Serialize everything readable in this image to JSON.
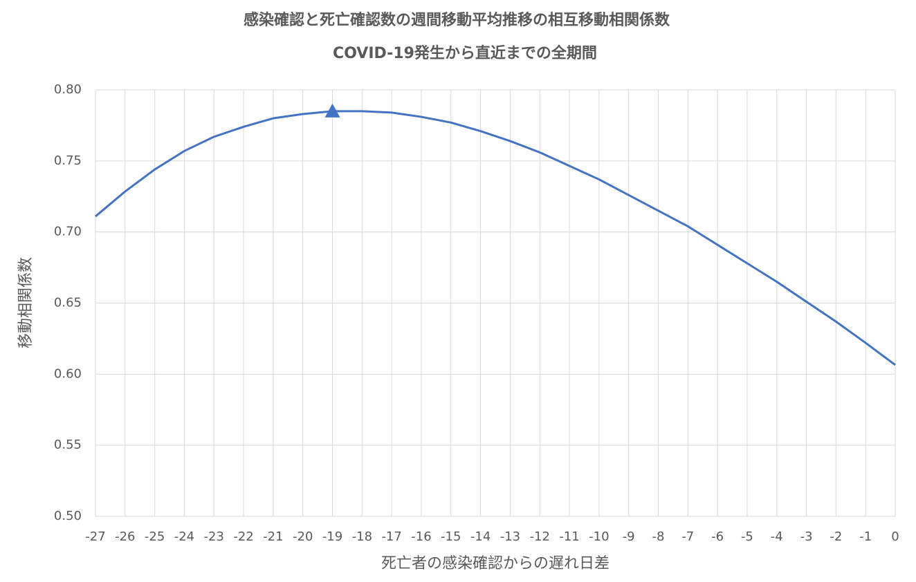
{
  "chart_data": {
    "type": "line",
    "title": "感染確認と死亡確認数の週間移動平均推移の相互移動相関係数",
    "subtitle": "COVID-19発生から直近までの全期間",
    "x_label": "死亡者の感染確認からの遅れ日差",
    "y_label": "移動相関係数",
    "x": [
      -27,
      -26,
      -25,
      -24,
      -23,
      -22,
      -21,
      -20,
      -19,
      -18,
      -17,
      -16,
      -15,
      -14,
      -13,
      -12,
      -11,
      -10,
      -9,
      -8,
      -7,
      -6,
      -5,
      -4,
      -3,
      -2,
      -1,
      0
    ],
    "values": [
      0.711,
      0.7285,
      0.744,
      0.757,
      0.767,
      0.774,
      0.78,
      0.783,
      0.785,
      0.785,
      0.784,
      0.781,
      0.777,
      0.771,
      0.764,
      0.756,
      0.7465,
      0.737,
      0.726,
      0.715,
      0.704,
      0.691,
      0.678,
      0.665,
      0.651,
      0.637,
      0.622,
      0.6065
    ],
    "color": "#4472c4",
    "highlight": {
      "x": -19,
      "value": 0.785
    },
    "xlim": [
      -27,
      0
    ],
    "xticks": [
      -27,
      -26,
      -25,
      -24,
      -23,
      -22,
      -21,
      -20,
      -19,
      -18,
      -17,
      -16,
      -15,
      -14,
      -13,
      -12,
      -11,
      -10,
      -9,
      -8,
      -7,
      -6,
      -5,
      -4,
      -3,
      -2,
      -1,
      0
    ],
    "ylim": [
      0.5,
      0.8
    ],
    "yticks": [
      {
        "value": 0.5,
        "label": "0.50"
      },
      0.55,
      {
        "value": 0.6,
        "label": "0.60"
      },
      0.65,
      {
        "value": 0.7,
        "label": "0.70"
      },
      0.75,
      {
        "value": 0.8,
        "label": "0.80"
      }
    ],
    "grid": true
  }
}
